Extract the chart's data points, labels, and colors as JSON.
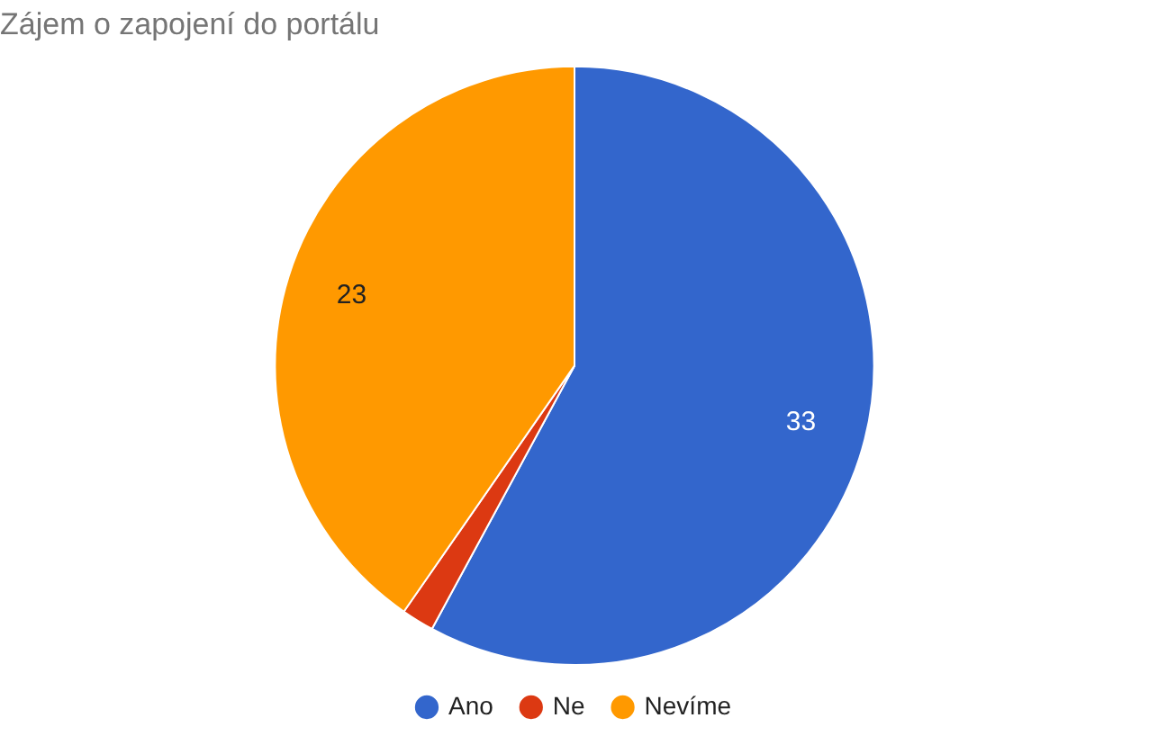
{
  "chart_data": {
    "type": "pie",
    "title": "Zájem o zapojení do portálu",
    "categories": [
      "Ano",
      "Ne",
      "Nevíme"
    ],
    "values": [
      33,
      1,
      23
    ],
    "colors": [
      "#3366cc",
      "#dc3912",
      "#ff9900"
    ],
    "value_labels": [
      "33",
      null,
      "23"
    ],
    "legend": "bottom"
  }
}
